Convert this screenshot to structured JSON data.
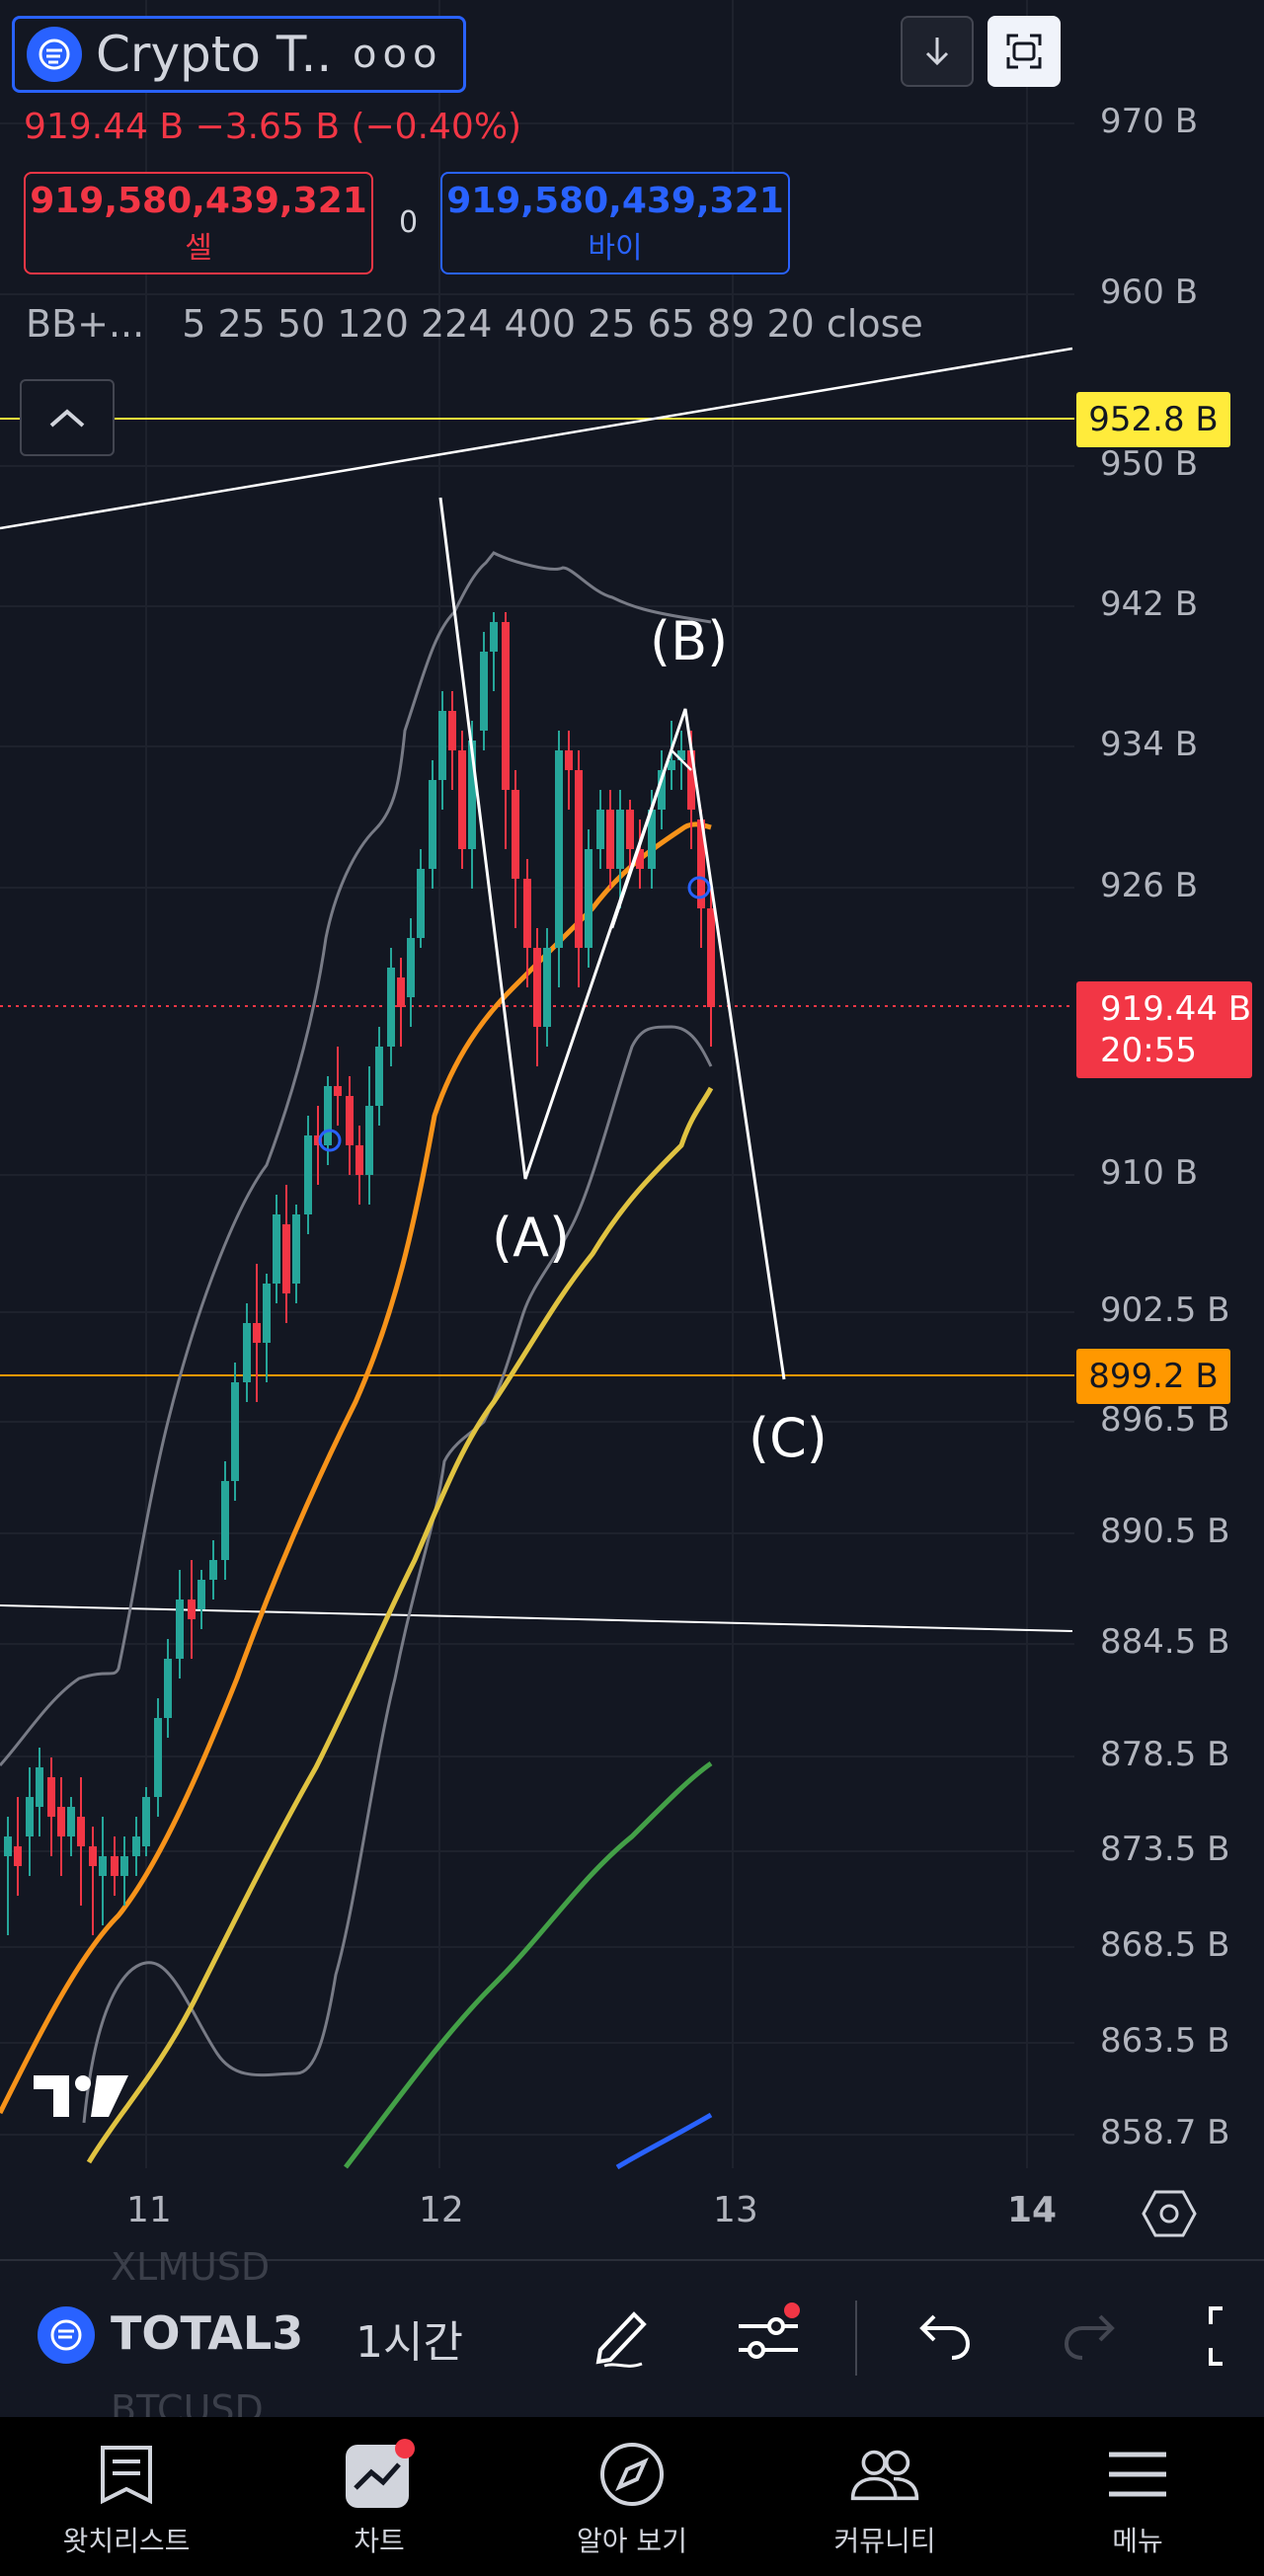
{
  "header": {
    "symbol_name": "Crypto T...",
    "more_label": "ooo",
    "price_change": "919.44 B  −3.65 B (−0.40%)"
  },
  "trade": {
    "sell_price": "919,580,439,321",
    "sell_label": "셀",
    "spread": "0",
    "buy_price": "919,580,439,321",
    "buy_label": "바이"
  },
  "indicators": {
    "name": "BB+...",
    "values": "5 25 50 120 224 400 25 65 89 20 close"
  },
  "price_axis": {
    "labels": [
      "970 B",
      "960 B",
      "950 B",
      "942 B",
      "934 B",
      "926 B",
      "910 B",
      "902.5 B",
      "896.5 B",
      "890.5 B",
      "884.5 B",
      "878.5 B",
      "873.5 B",
      "868.5 B",
      "863.5 B",
      "858.7 B"
    ],
    "yellow_level": "952.8 B",
    "orange_level": "899.2 B",
    "current_price": "919.44 B",
    "countdown": "20:55"
  },
  "time_axis": {
    "labels": [
      "11",
      "12",
      "13",
      "14"
    ]
  },
  "waves": {
    "a": "(A)",
    "b": "(B)",
    "c": "(C)"
  },
  "toolbar": {
    "symbol": "TOTAL3",
    "interval": "1시간",
    "ghost_above": "XLMUSD",
    "ghost_below": "BTCUSD"
  },
  "nav": {
    "watchlist": "왓치리스트",
    "chart": "차트",
    "explore": "알아 보기",
    "community": "커뮤니티",
    "menu": "메뉴"
  },
  "colors": {
    "background": "#131722",
    "up": "#26a69a",
    "down": "#f23645",
    "accent": "#2962ff",
    "yellow_line": "#ffeb3b",
    "orange_line": "#ff9800"
  }
}
